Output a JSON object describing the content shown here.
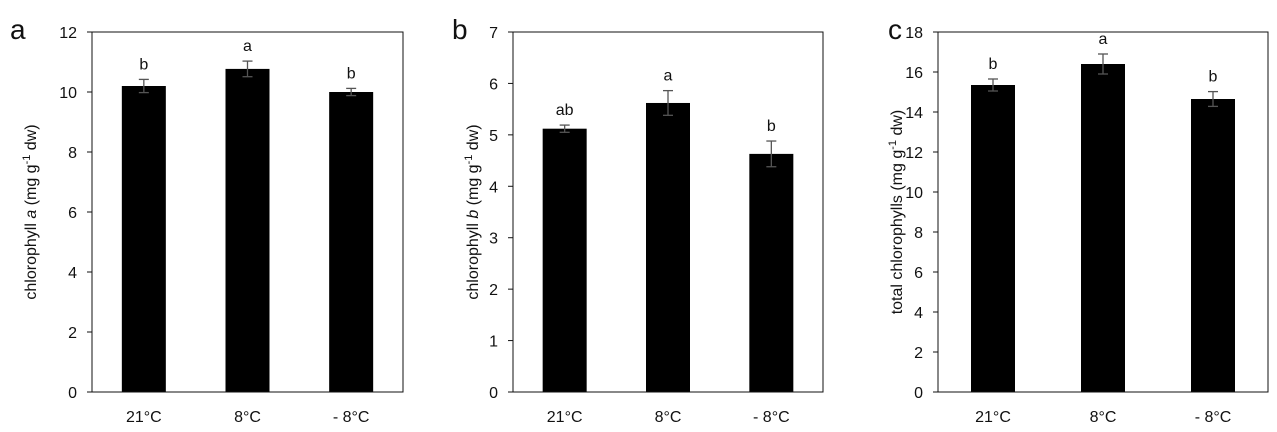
{
  "chart_data": [
    {
      "panel": "a",
      "type": "bar",
      "categories": [
        "21°C",
        "8°C",
        "- 8°C"
      ],
      "values": [
        10.2,
        10.77,
        10.0
      ],
      "errors": [
        0.22,
        0.26,
        0.12
      ],
      "significance": [
        "b",
        "a",
        "b"
      ],
      "ylim": [
        0,
        12
      ],
      "yticks": [
        "0",
        "2",
        "4",
        "6",
        "8",
        "10",
        "12"
      ],
      "ylabel": {
        "pre": "chlorophyll ",
        "italic": "a",
        "post": " (mg g",
        "sup": "-1",
        "tail": " dw)"
      }
    },
    {
      "panel": "b",
      "type": "bar",
      "categories": [
        "21°C",
        "8°C",
        "- 8°C"
      ],
      "values": [
        5.12,
        5.62,
        4.63
      ],
      "errors": [
        0.07,
        0.24,
        0.25
      ],
      "significance": [
        "ab",
        "a",
        "b"
      ],
      "ylim": [
        0,
        7
      ],
      "yticks": [
        "0",
        "1",
        "2",
        "3",
        "4",
        "5",
        "6",
        "7"
      ],
      "ylabel": {
        "pre": "chlorophyll ",
        "italic": "b",
        "post": " (mg g",
        "sup": "-1",
        "tail": " dw)"
      }
    },
    {
      "panel": "c",
      "type": "bar",
      "categories": [
        "21°C",
        "8°C",
        "- 8°C"
      ],
      "values": [
        15.35,
        16.4,
        14.65
      ],
      "errors": [
        0.3,
        0.5,
        0.37
      ],
      "significance": [
        "b",
        "a",
        "b"
      ],
      "ylim": [
        0,
        18
      ],
      "yticks": [
        "0",
        "2",
        "4",
        "6",
        "8",
        "10",
        "12",
        "14",
        "16",
        "18"
      ],
      "ylabel": {
        "pre": "total chlorophylls ",
        "italic": "",
        "post": "(mg g",
        "sup": "-1",
        "tail": " dw)"
      }
    }
  ],
  "colors": {
    "bar": "#000000",
    "error": "#555555",
    "axis": "#111111",
    "text": "#111111"
  }
}
